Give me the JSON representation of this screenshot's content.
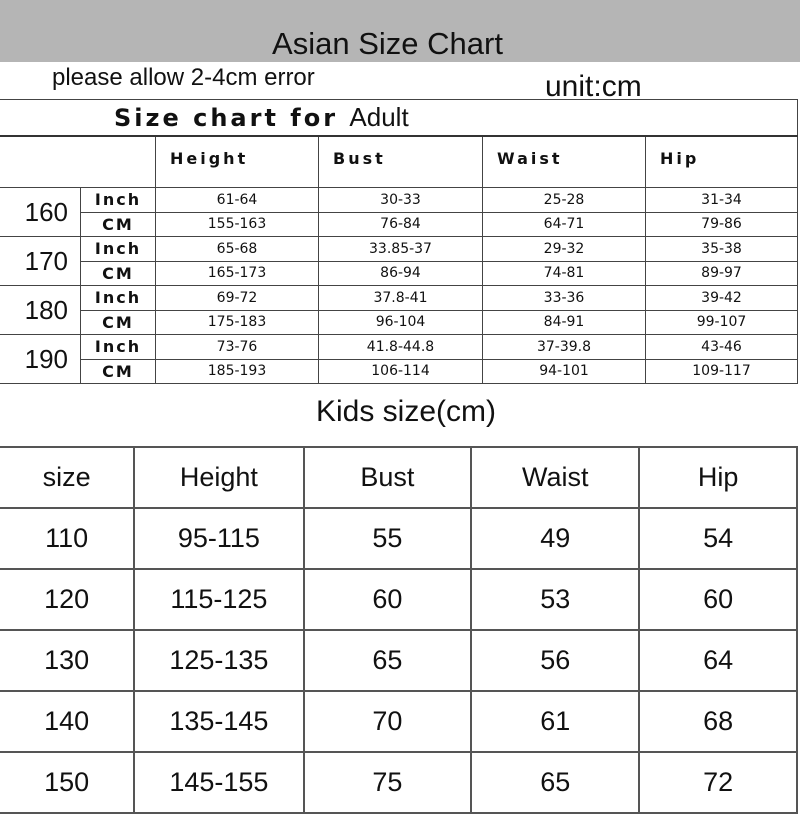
{
  "header": {
    "title": "Asian Size Chart",
    "note": "please allow 2-4cm error",
    "unit": "unit:cm"
  },
  "adult": {
    "caption": "Size chart for",
    "caption_suffix": "Adult",
    "columns": [
      "Height",
      "Bust",
      "Waist",
      "Hip"
    ],
    "rows": [
      {
        "size": "160",
        "inch": [
          "61-64",
          "30-33",
          "25-28",
          "31-34"
        ],
        "cm": [
          "155-163",
          "76-84",
          "64-71",
          "79-86"
        ]
      },
      {
        "size": "170",
        "inch": [
          "65-68",
          "33.85-37",
          "29-32",
          "35-38"
        ],
        "cm": [
          "165-173",
          "86-94",
          "74-81",
          "89-97"
        ]
      },
      {
        "size": "180",
        "inch": [
          "69-72",
          "37.8-41",
          "33-36",
          "39-42"
        ],
        "cm": [
          "175-183",
          "96-104",
          "84-91",
          "99-107"
        ]
      },
      {
        "size": "190",
        "inch": [
          "73-76",
          "41.8-44.8",
          "37-39.8",
          "43-46"
        ],
        "cm": [
          "185-193",
          "106-114",
          "94-101",
          "109-117"
        ]
      }
    ],
    "unit_labels": {
      "inch": "Inch",
      "cm": "CM"
    }
  },
  "kids": {
    "title": "Kids size(cm)",
    "columns": [
      "size",
      "Height",
      "Bust",
      "Waist",
      "Hip"
    ],
    "rows": [
      [
        "110",
        "95-115",
        "55",
        "49",
        "54"
      ],
      [
        "120",
        "115-125",
        "60",
        "53",
        "60"
      ],
      [
        "130",
        "125-135",
        "65",
        "56",
        "64"
      ],
      [
        "140",
        "135-145",
        "70",
        "61",
        "68"
      ],
      [
        "150",
        "145-155",
        "75",
        "65",
        "72"
      ]
    ]
  }
}
